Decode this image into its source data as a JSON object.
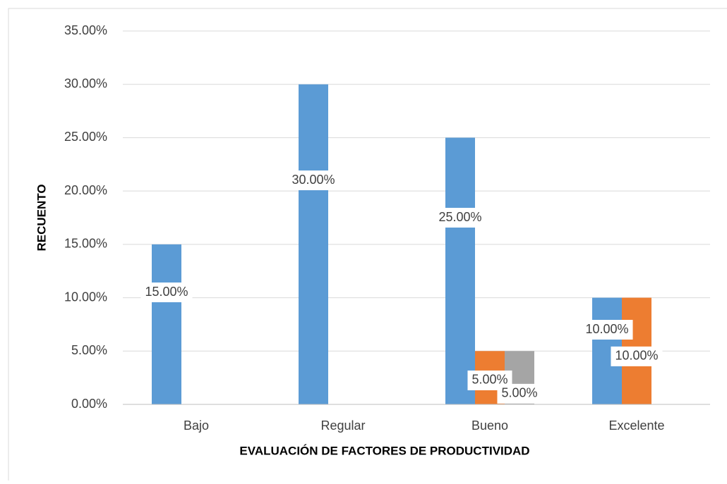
{
  "chart_data": {
    "type": "bar",
    "x_label": "EVALUACIÓN DE FACTORES DE PRODUCTIVIDAD",
    "y_label": "RECUENTO",
    "categories": [
      "Bajo",
      "Regular",
      "Bueno",
      "Excelente"
    ],
    "series": [
      {
        "color": "#5b9bd5",
        "values": [
          15,
          30,
          25,
          10
        ],
        "value_labels": [
          "15.00%",
          "30.00%",
          "25.00%",
          "10.00%"
        ]
      },
      {
        "color": "#ed7d31",
        "values": [
          null,
          null,
          5,
          10
        ],
        "value_labels": [
          null,
          null,
          "5.00%",
          "10.00%"
        ]
      },
      {
        "color": "#a5a5a5",
        "values": [
          null,
          null,
          5,
          null
        ],
        "value_labels": [
          null,
          null,
          "5.00%",
          null
        ]
      }
    ],
    "ylim": [
      0,
      35
    ],
    "yticks": [
      {
        "value": 0,
        "label": "0.00%"
      },
      {
        "value": 5,
        "label": "5.00%"
      },
      {
        "value": 10,
        "label": "10.00%"
      },
      {
        "value": 15,
        "label": "15.00%"
      },
      {
        "value": 20,
        "label": "20.00%"
      },
      {
        "value": 25,
        "label": "25.00%"
      },
      {
        "value": 30,
        "label": "30.00%"
      },
      {
        "value": 35,
        "label": "35.00%"
      }
    ],
    "grid": true
  }
}
